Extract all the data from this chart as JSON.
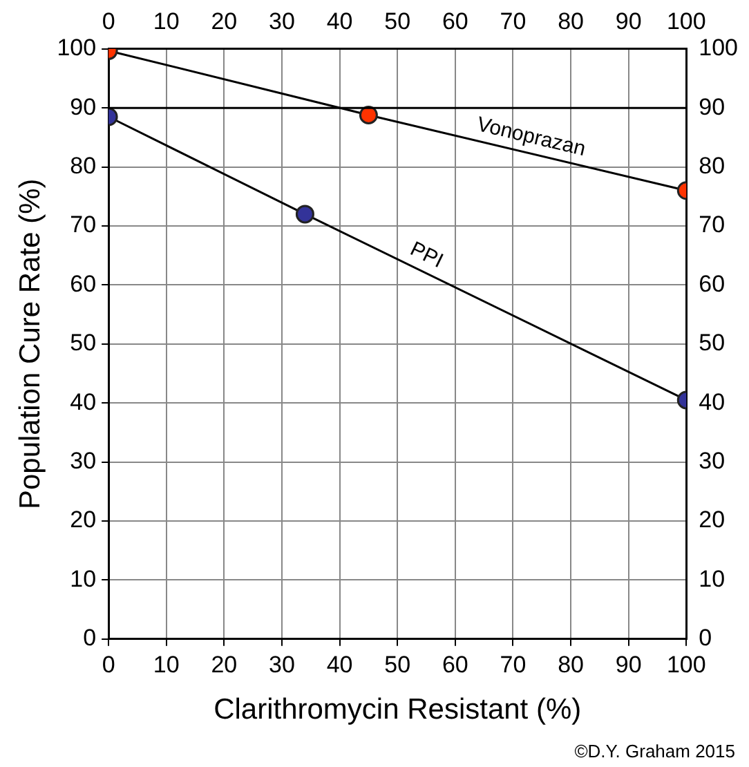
{
  "chart_data": {
    "type": "line",
    "xlabel": "Clarithromycin Resistant (%)",
    "ylabel": "Population Cure Rate (%)",
    "xlim": [
      0,
      100
    ],
    "xticks": [
      0,
      10,
      20,
      30,
      40,
      50,
      60,
      70,
      80,
      90,
      100
    ],
    "x2lim": [
      0,
      100
    ],
    "x2ticks": [
      0,
      10,
      20,
      30,
      40,
      50,
      60,
      70,
      80,
      90,
      100
    ],
    "ylim": [
      0,
      100
    ],
    "yticks": [
      0,
      10,
      20,
      30,
      40,
      50,
      60,
      70,
      80,
      90,
      100
    ],
    "y2lim": [
      0,
      100
    ],
    "y2ticks": [
      0,
      10,
      20,
      30,
      40,
      50,
      60,
      70,
      80,
      90,
      100
    ],
    "series": [
      {
        "name": "Vonoprazan",
        "color": "#ff3300",
        "x": [
          0,
          45,
          100
        ],
        "values": [
          99.7,
          88.8,
          76
        ]
      },
      {
        "name": "PPI",
        "color": "#333399",
        "x": [
          0,
          34,
          100
        ],
        "values": [
          88.5,
          72,
          40.5
        ]
      }
    ],
    "ref_lines": [
      {
        "axis": "y",
        "value": 90,
        "color": "#000000"
      }
    ],
    "annotations": [
      "©D.Y. Graham 2015"
    ],
    "grid": true,
    "legend": false,
    "marker": "circle",
    "line_style": "solid"
  }
}
